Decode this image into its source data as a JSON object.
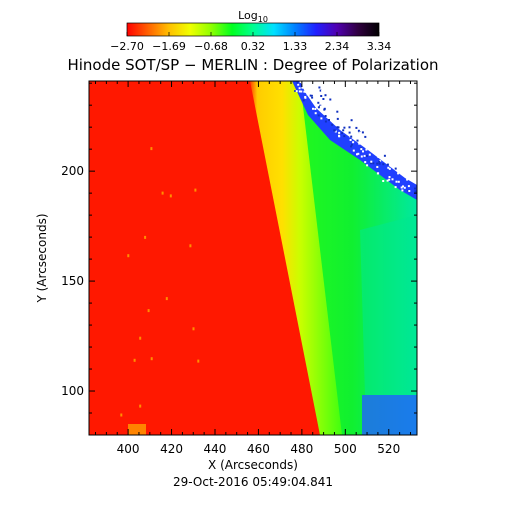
{
  "chart_data": {
    "type": "heatmap",
    "title": "Hinode SOT/SP − MERLIN : Degree of Polarization",
    "xlabel": "X (Arcseconds)",
    "ylabel": "Y (Arcseconds)",
    "xlim": [
      382,
      533
    ],
    "ylim": [
      80,
      241
    ],
    "xticks": [
      400,
      420,
      440,
      460,
      480,
      500,
      520
    ],
    "yticks": [
      100,
      150,
      200
    ],
    "timestamp": "29-Oct-2016 05:49:04.841",
    "colorbar": {
      "title_base": "Log",
      "title_sub": "10",
      "range": [
        -2.7,
        3.34
      ],
      "ticks": [
        "−2.70",
        "−1.69",
        "−0.68",
        "0.32",
        "1.33",
        "2.34",
        "3.34"
      ],
      "colors": [
        "#ff0000",
        "#ff6000",
        "#ffc000",
        "#f0ff00",
        "#90ff00",
        "#00ff20",
        "#00ff90",
        "#00e0ff",
        "#0080ff",
        "#2020ff",
        "#5000b0",
        "#300040",
        "#000000"
      ]
    },
    "regions": [
      {
        "name": "disk-interior",
        "approx_log10": -2.7,
        "color": "#ff1800"
      },
      {
        "name": "limb-band",
        "approx_log10": -0.2,
        "color": "#ffd400"
      },
      {
        "name": "off-limb",
        "approx_log10": 1.1,
        "color": "#10f020"
      },
      {
        "name": "far-off-limb",
        "approx_log10": 1.6,
        "color": "#00e890"
      },
      {
        "name": "noise-edge",
        "approx_log10": 2.4,
        "color": "#2040ff"
      },
      {
        "name": "no-data",
        "color": "#ffffff"
      }
    ],
    "limb_x_at_top": 457,
    "limb_x_at_bottom": 492
  }
}
